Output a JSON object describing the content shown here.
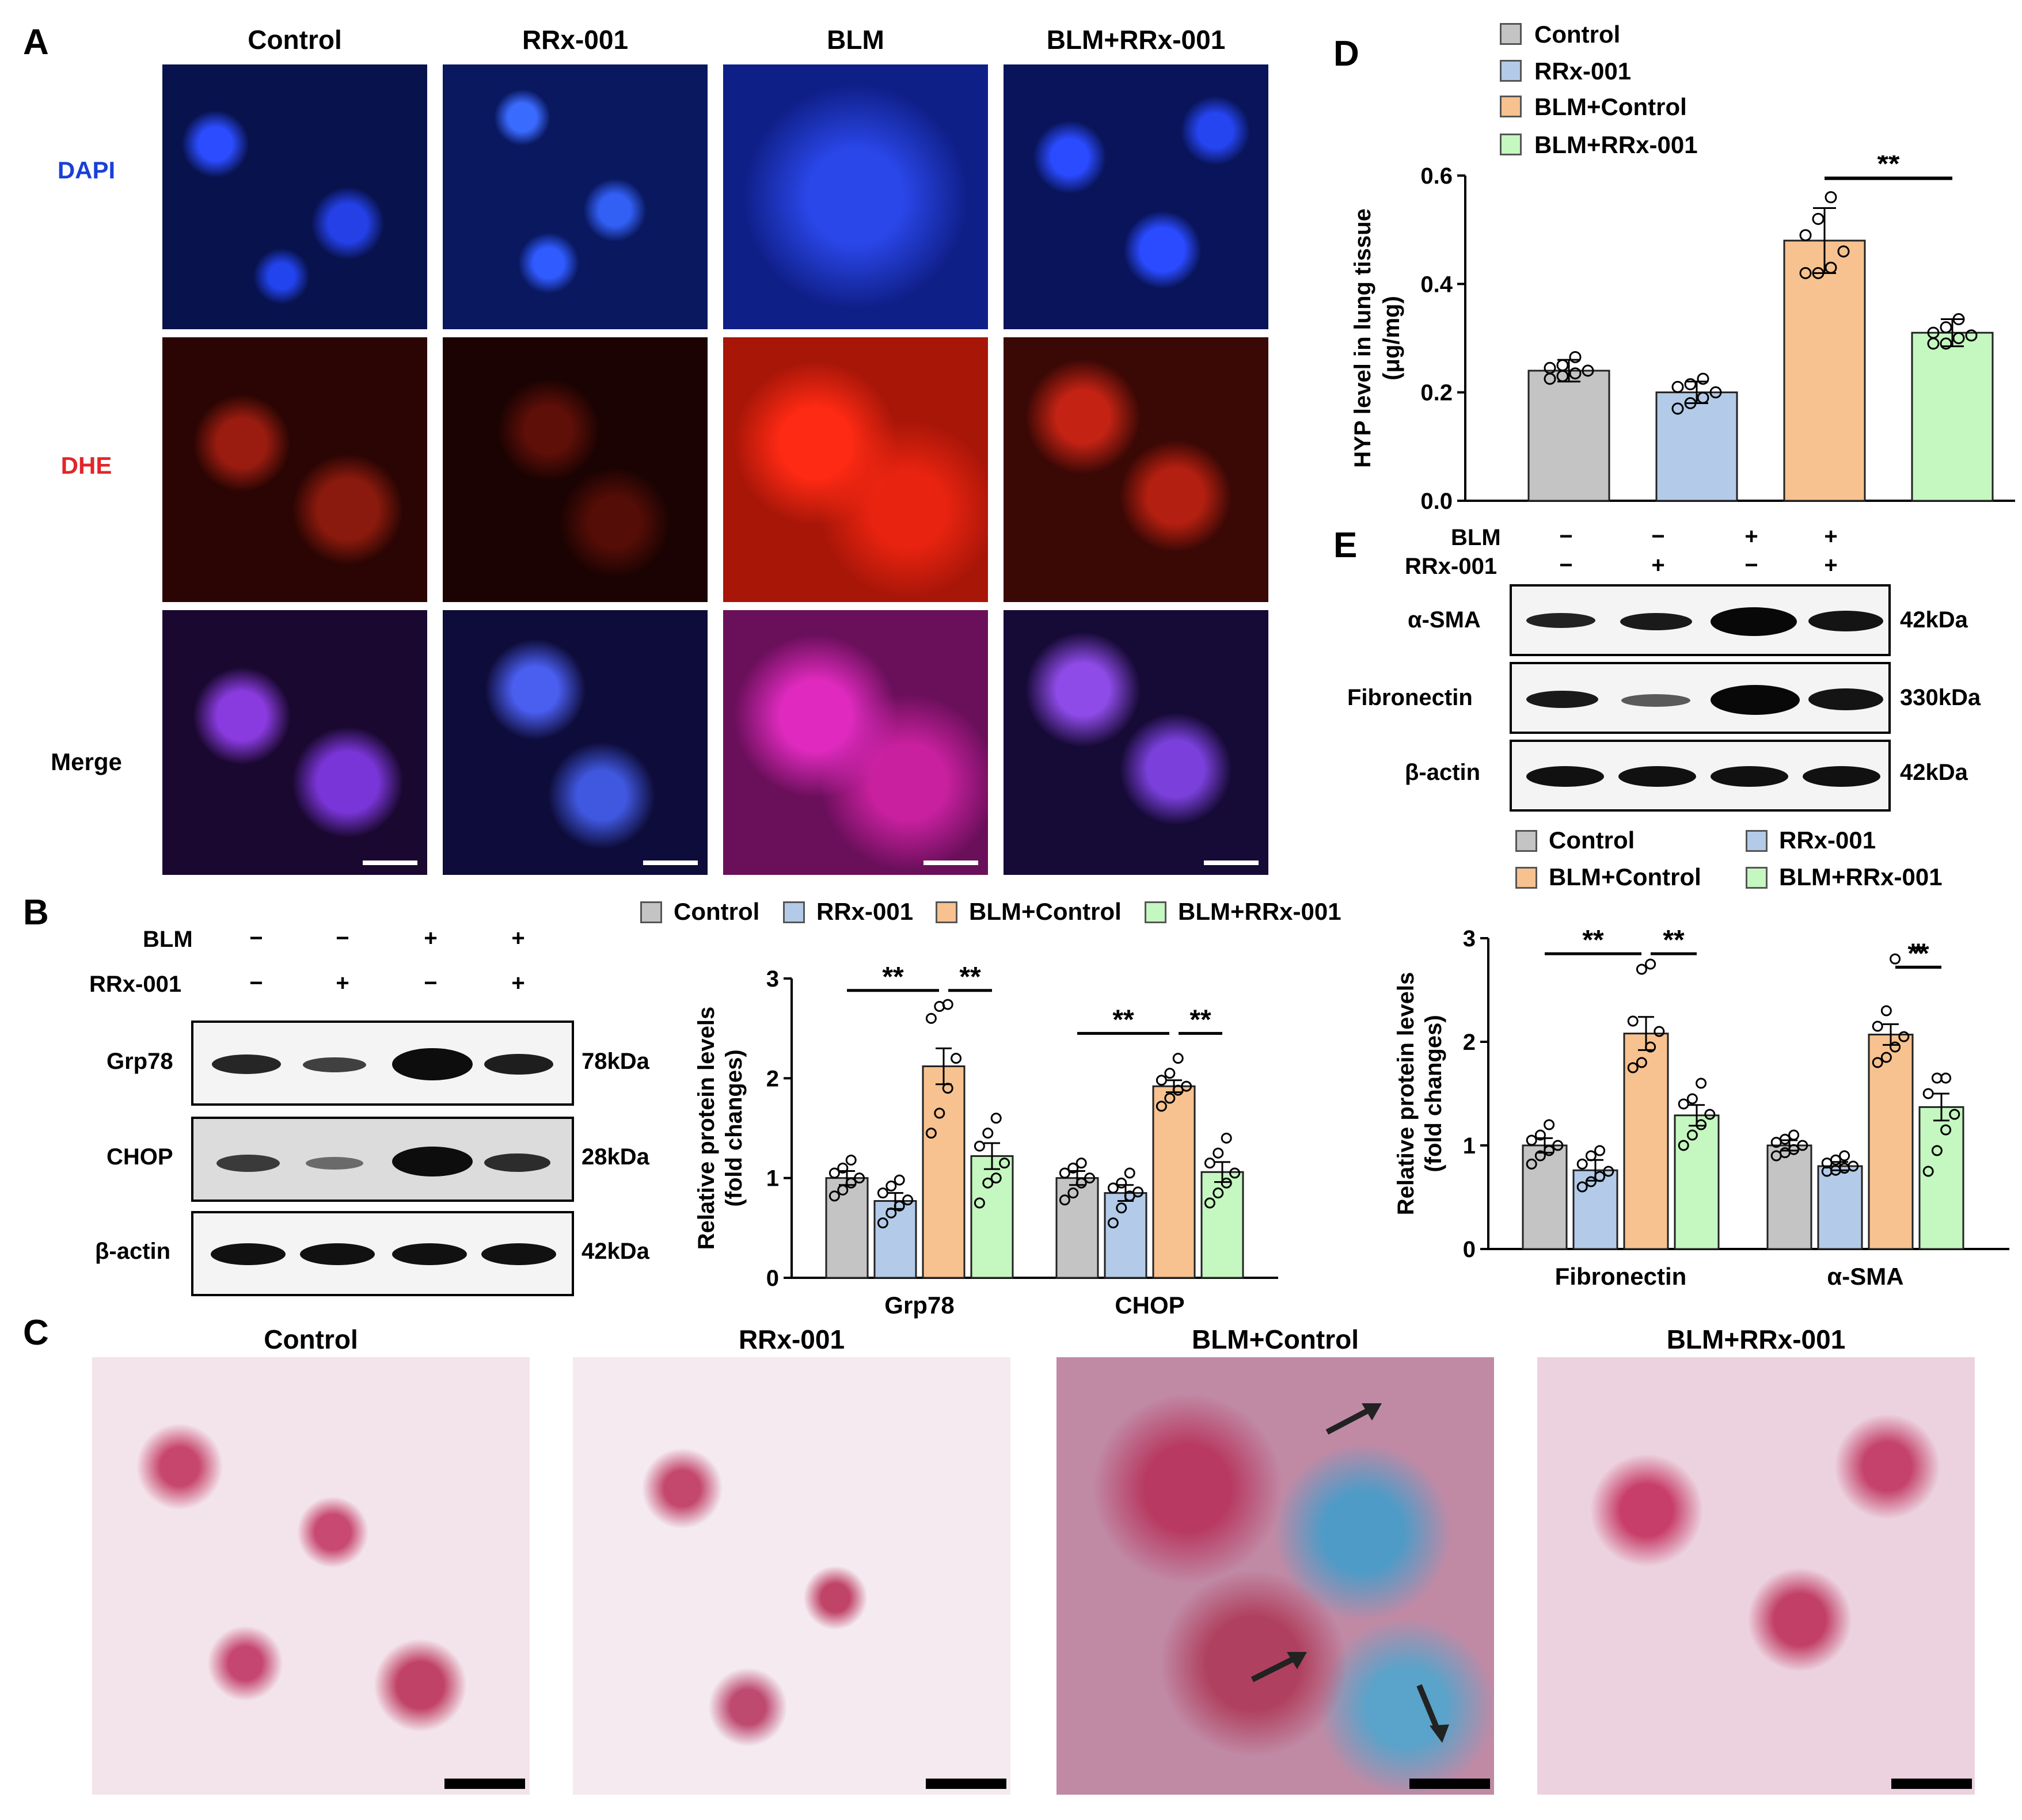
{
  "colors": {
    "control": "#c4c4c4",
    "rrx": "#b3cbe8",
    "blm_control": "#f7c28f",
    "blm_rrx": "#c5f7c0"
  },
  "panelA": {
    "label": "A",
    "columns": [
      "Control",
      "RRx-001",
      "BLM",
      "BLM+RRx-001"
    ],
    "rows": [
      {
        "label": "DAPI",
        "color": "#1a3fd8"
      },
      {
        "label": "DHE",
        "color": "#e0262a"
      },
      {
        "label": "Merge",
        "color": "#000000"
      }
    ]
  },
  "panelB": {
    "label": "B",
    "treat": {
      "blm_label": "BLM",
      "rrx_label": "RRx-001",
      "blm": [
        "−",
        "−",
        "+",
        "+"
      ],
      "rrx": [
        "−",
        "+",
        "−",
        "+"
      ]
    },
    "blots": [
      {
        "name": "Grp78",
        "kda": "78kDa"
      },
      {
        "name": "CHOP",
        "kda": "28kDa"
      },
      {
        "name": "β-actin",
        "kda": "42kDa"
      }
    ],
    "legend": [
      "Control",
      "RRx-001",
      "BLM+Control",
      "BLM+RRx-001"
    ]
  },
  "panelC": {
    "label": "C",
    "titles": [
      "Control",
      "RRx-001",
      "BLM+Control",
      "BLM+RRx-001"
    ]
  },
  "panelD": {
    "label": "D",
    "legend": [
      "Control",
      "RRx-001",
      "BLM+Control",
      "BLM+RRx-001"
    ]
  },
  "panelE": {
    "label": "E",
    "treat": {
      "blm_label": "BLM",
      "rrx_label": "RRx-001",
      "blm": [
        "−",
        "−",
        "+",
        "+"
      ],
      "rrx": [
        "−",
        "+",
        "−",
        "+"
      ]
    },
    "blots": [
      {
        "name": "α-SMA",
        "kda": "42kDa"
      },
      {
        "name": "Fibronectin",
        "kda": "330kDa"
      },
      {
        "name": "β-actin",
        "kda": "42kDa"
      }
    ],
    "legend": [
      "Control",
      "RRx-001",
      "BLM+Control",
      "BLM+RRx-001"
    ]
  },
  "chart_data": [
    {
      "id": "B-chart",
      "type": "bar",
      "categories": [
        "Grp78",
        "CHOP"
      ],
      "ylabel": "Relative protein levels\n(fold changes)",
      "ylim": [
        0,
        3
      ],
      "yticks": [
        0,
        1,
        2,
        3
      ],
      "series": [
        {
          "name": "Control",
          "values": [
            1.0,
            1.0
          ],
          "err": [
            0.07,
            0.07
          ],
          "points": [
            [
              0.82,
              0.88,
              0.95,
              1.0,
              1.05,
              1.1,
              1.18
            ],
            [
              0.78,
              0.85,
              0.95,
              1.0,
              1.05,
              1.1,
              1.15
            ]
          ]
        },
        {
          "name": "RRx-001",
          "values": [
            0.77,
            0.85
          ],
          "err": [
            0.08,
            0.08
          ],
          "points": [
            [
              0.55,
              0.65,
              0.72,
              0.78,
              0.85,
              0.92,
              0.98
            ],
            [
              0.55,
              0.7,
              0.82,
              0.86,
              0.9,
              0.95,
              1.05
            ]
          ]
        },
        {
          "name": "BLM+Control",
          "values": [
            2.12,
            1.92
          ],
          "err": [
            0.18,
            0.06
          ],
          "points": [
            [
              1.45,
              1.65,
              1.9,
              2.2,
              2.6,
              2.72,
              2.74
            ],
            [
              1.72,
              1.8,
              1.88,
              1.92,
              1.98,
              2.05,
              2.2
            ]
          ]
        },
        {
          "name": "BLM+RRx-001",
          "values": [
            1.22,
            1.06
          ],
          "err": [
            0.13,
            0.1
          ],
          "points": [
            [
              0.75,
              0.95,
              1.0,
              1.15,
              1.32,
              1.45,
              1.6
            ],
            [
              0.75,
              0.85,
              0.95,
              1.05,
              1.15,
              1.25,
              1.4
            ]
          ]
        }
      ],
      "sig": [
        {
          "cat": 0,
          "from": 0,
          "to": 2,
          "label": "**",
          "y": 2.88
        },
        {
          "cat": 0,
          "from": 2,
          "to": 3,
          "label": "**",
          "y": 2.88
        },
        {
          "cat": 1,
          "from": 0,
          "to": 2,
          "label": "**",
          "y": 2.45
        },
        {
          "cat": 1,
          "from": 2,
          "to": 3,
          "label": "**",
          "y": 2.45
        }
      ]
    },
    {
      "id": "D-chart",
      "type": "bar",
      "categories": [
        "Control",
        "RRx-001",
        "BLM+Control",
        "BLM+RRx-001"
      ],
      "ylabel": "HYP level in lung tissue\n(μg/mg)",
      "ylim": [
        0,
        0.6
      ],
      "yticks": [
        0.0,
        0.2,
        0.4,
        0.6
      ],
      "yticklabels": [
        "0.0",
        "0.2",
        "0.4",
        "0.6"
      ],
      "values": [
        0.24,
        0.2,
        0.48,
        0.31
      ],
      "err": [
        0.02,
        0.02,
        0.06,
        0.025
      ],
      "points": [
        [
          0.225,
          0.23,
          0.235,
          0.24,
          0.245,
          0.25,
          0.265
        ],
        [
          0.17,
          0.18,
          0.19,
          0.2,
          0.21,
          0.215,
          0.225
        ],
        [
          0.42,
          0.42,
          0.43,
          0.46,
          0.49,
          0.52,
          0.56
        ],
        [
          0.29,
          0.29,
          0.3,
          0.305,
          0.31,
          0.32,
          0.335
        ]
      ],
      "sig": [
        {
          "from": 2,
          "to": 3,
          "label": "**",
          "y": 0.595
        }
      ]
    },
    {
      "id": "E-chart",
      "type": "bar",
      "categories": [
        "Fibronectin",
        "α-SMA"
      ],
      "ylabel": "Relative protein levels\n(fold changes)",
      "ylim": [
        0,
        3
      ],
      "yticks": [
        0,
        1,
        2,
        3
      ],
      "series": [
        {
          "name": "Control",
          "values": [
            1.0,
            1.0
          ],
          "err": [
            0.07,
            0.05
          ],
          "points": [
            [
              0.82,
              0.9,
              0.95,
              1.0,
              1.05,
              1.1,
              1.2
            ],
            [
              0.9,
              0.93,
              0.96,
              1.0,
              1.03,
              1.06,
              1.1
            ]
          ]
        },
        {
          "name": "RRx-001",
          "values": [
            0.76,
            0.8
          ],
          "err": [
            0.1,
            0.04
          ],
          "points": [
            [
              0.6,
              0.65,
              0.7,
              0.75,
              0.82,
              0.9,
              0.95
            ],
            [
              0.75,
              0.76,
              0.78,
              0.8,
              0.83,
              0.86,
              0.9
            ]
          ]
        },
        {
          "name": "BLM+Control",
          "values": [
            2.08,
            2.07
          ],
          "err": [
            0.16,
            0.1
          ],
          "points": [
            [
              1.75,
              1.8,
              1.95,
              2.1,
              2.2,
              2.7,
              2.75
            ],
            [
              1.8,
              1.85,
              1.95,
              2.05,
              2.15,
              2.3,
              2.8
            ]
          ]
        },
        {
          "name": "BLM+RRx-001",
          "values": [
            1.29,
            1.37
          ],
          "err": [
            0.1,
            0.13
          ],
          "points": [
            [
              1.0,
              1.1,
              1.2,
              1.3,
              1.4,
              1.45,
              1.6
            ],
            [
              0.75,
              0.95,
              1.15,
              1.3,
              1.5,
              1.65,
              1.65
            ]
          ]
        }
      ],
      "sig": [
        {
          "cat": 0,
          "from": 0,
          "to": 2,
          "label": "**",
          "y": 2.85
        },
        {
          "cat": 0,
          "from": 2,
          "to": 3,
          "label": "**",
          "y": 2.85
        },
        {
          "cat": 1,
          "from": 2,
          "to": 3,
          "label": "**",
          "y": 2.72
        },
        {
          "cat": 1,
          "from": 2,
          "to": 3,
          "label": "*",
          "y": 2.72,
          "right": true
        }
      ]
    }
  ]
}
